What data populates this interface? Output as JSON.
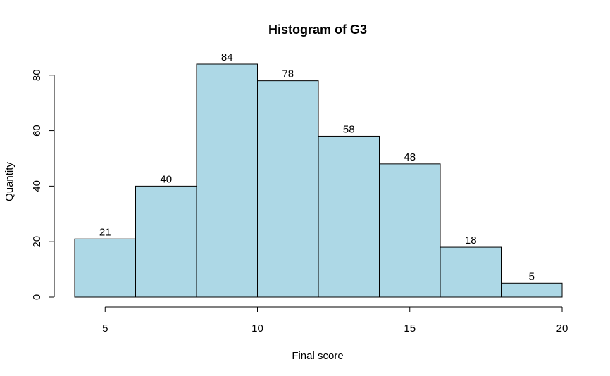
{
  "chart_data": {
    "type": "bar",
    "title": "Histogram of G3",
    "xlabel": "Final score",
    "ylabel": "Quantity",
    "bins": [
      {
        "from": 4,
        "to": 6,
        "count": 21
      },
      {
        "from": 6,
        "to": 8,
        "count": 40
      },
      {
        "from": 8,
        "to": 10,
        "count": 84
      },
      {
        "from": 10,
        "to": 12,
        "count": 78
      },
      {
        "from": 12,
        "to": 14,
        "count": 58
      },
      {
        "from": 14,
        "to": 16,
        "count": 48
      },
      {
        "from": 16,
        "to": 18,
        "count": 18
      },
      {
        "from": 18,
        "to": 20,
        "count": 5
      }
    ],
    "xlim": [
      4,
      20
    ],
    "ylim": [
      0,
      84
    ],
    "x_ticks": [
      "5",
      "10",
      "15",
      "20"
    ],
    "y_ticks": [
      "0",
      "20",
      "40",
      "60",
      "80"
    ],
    "grid": false,
    "bar_color": "#add8e6",
    "border_color": "#000000"
  }
}
